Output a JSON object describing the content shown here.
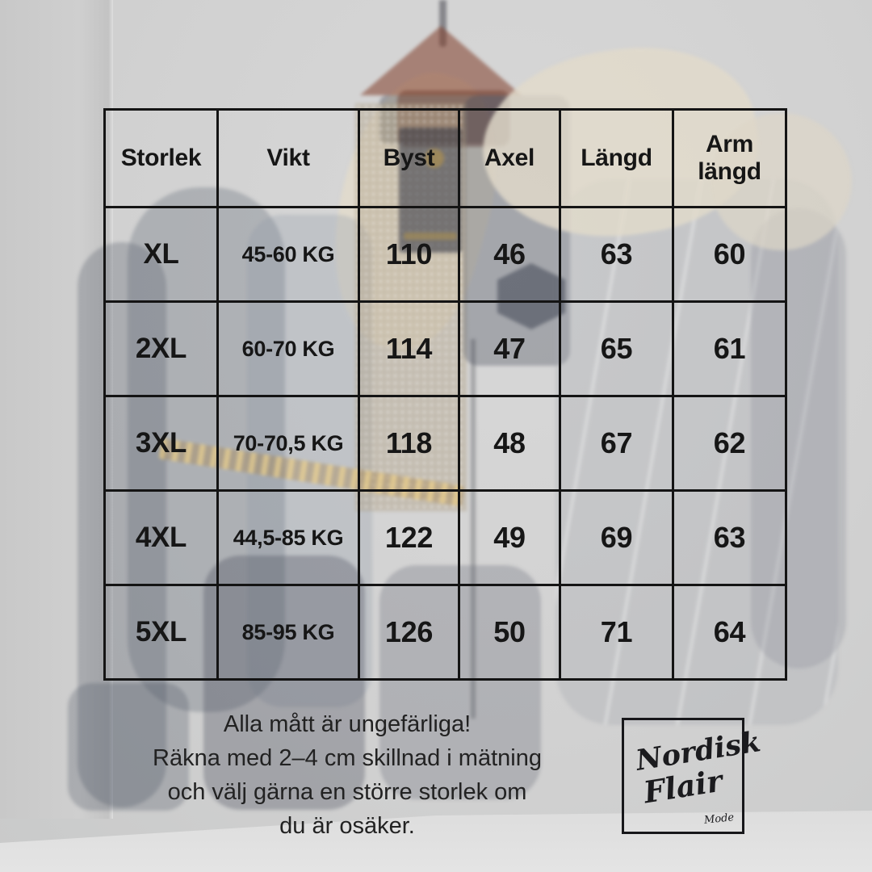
{
  "table": {
    "columns": [
      "Storlek",
      "Vikt",
      "Byst",
      "Axel",
      "Längd",
      "Arm längd"
    ],
    "rows": [
      [
        "XL",
        "45-60 KG",
        "110",
        "46",
        "63",
        "60"
      ],
      [
        "2XL",
        "60-70 KG",
        "114",
        "47",
        "65",
        "61"
      ],
      [
        "3XL",
        "70-70,5 KG",
        "118",
        "48",
        "67",
        "62"
      ],
      [
        "4XL",
        "44,5-85 KG",
        "122",
        "49",
        "69",
        "63"
      ],
      [
        "5XL",
        "85-95 KG",
        "126",
        "50",
        "71",
        "64"
      ]
    ]
  },
  "footer_note": "Alla mått är ungefärliga!\nRäkna med 2–4 cm skillnad i mätning\noch välj gärna en större storlek om\ndu är osäker.",
  "logo": {
    "word1": "Nordisk",
    "word2": "Flair",
    "tagline": "Mode"
  },
  "colors": {
    "table_border": "#141414",
    "text": "#161616",
    "wall": "#cfcfcf",
    "collar": "#e2dbcb",
    "hanger": "#803c28"
  }
}
